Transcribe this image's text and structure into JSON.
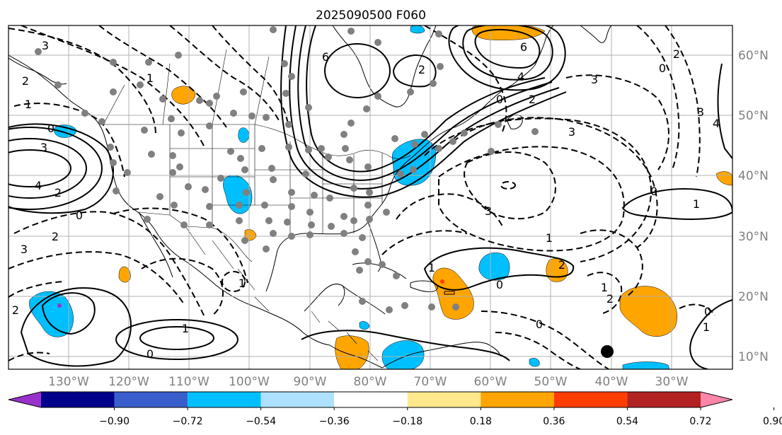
{
  "title": "2025090500 F060",
  "longitude_labels": [
    "130°W",
    "120°W",
    "110°W",
    "100°W",
    "90°W",
    "80°W",
    "70°W",
    "60°W",
    "50°W",
    "40°W",
    "30°W"
  ],
  "latitude_labels": [
    "60°N",
    "50°N",
    "40°N",
    "30°N",
    "20°N",
    "10°N"
  ],
  "colorbar": {
    "tick_labels": [
      "−0.90",
      "−0.72",
      "−0.54",
      "−0.36",
      "−0.18",
      "0.18",
      "0.36",
      "0.54",
      "0.72",
      "0.90"
    ],
    "colors": [
      "#9932CC",
      "#00008B",
      "#3A5FCD",
      "#00BFFF",
      "#ADE1FF",
      "#FFFFFF",
      "#FFE98C",
      "#FFA500",
      "#FF3D00",
      "#B22222",
      "#FF85AB"
    ]
  },
  "contour_labels": [
    "3",
    "2",
    "1",
    "0",
    "3",
    "4",
    "2",
    "0",
    "2",
    "3",
    "1",
    "6",
    "2",
    "4",
    "6",
    "0",
    "2",
    "3",
    "4",
    "3",
    "2",
    "0",
    "0",
    "1",
    "3",
    "3",
    "1",
    "1",
    "0",
    "2",
    "1",
    "0",
    "2",
    "1",
    "0",
    "1",
    "1",
    "0",
    "2"
  ],
  "colors": {
    "frame": "#000000",
    "grid": "#b0b0b0",
    "tick_label": "#808080",
    "positive_fill": "#FFA500",
    "negative_fill": "#00BFFF"
  }
}
